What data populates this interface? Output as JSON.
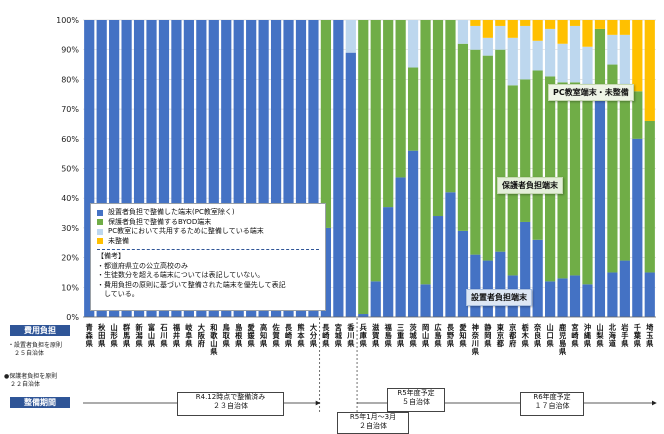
{
  "chart_data": {
    "type": "bar",
    "stacked": true,
    "yticks": [
      "0%",
      "10%",
      "20%",
      "30%",
      "40%",
      "50%",
      "60%",
      "70%",
      "80%",
      "90%",
      "100%"
    ],
    "ylim": [
      0,
      100
    ],
    "categories": [
      "青森県",
      "秋田県",
      "山形県",
      "群馬県",
      "新潟県",
      "富山県",
      "石川県",
      "福井県",
      "岐阜県",
      "大阪府",
      "和歌山県",
      "鳥取県",
      "島根県",
      "愛媛県",
      "高知県",
      "佐賀県",
      "長崎県",
      "熊本県",
      "大分県",
      "長崎県",
      "宮城県",
      "香川県",
      "兵庫県",
      "滋賀県",
      "福島県",
      "三重県",
      "茨城県",
      "岡山県",
      "広島県",
      "長野県",
      "愛知県",
      "神奈川県",
      "静岡県",
      "東京都",
      "京都府",
      "栃木県",
      "奈良県",
      "山口県",
      "鹿児島県",
      "宮崎県",
      "沖縄県",
      "山梨県",
      "北海道",
      "岩手県",
      "千葉県",
      "埼玉県"
    ],
    "series": [
      {
        "name": "設置者負担で整備した端末(PC教室除く)",
        "color": "#4472c4",
        "values": [
          100,
          100,
          100,
          100,
          100,
          100,
          100,
          100,
          100,
          100,
          100,
          100,
          100,
          100,
          100,
          100,
          100,
          100,
          100,
          30,
          100,
          89,
          1,
          12,
          37,
          47,
          56,
          11,
          34,
          42,
          29,
          21,
          19,
          22,
          14,
          32,
          26,
          12,
          13,
          14,
          11,
          73,
          15,
          19,
          60,
          15
        ]
      },
      {
        "name": "保護者負担で整備するBYOD端末",
        "color": "#70ad47",
        "values": [
          0,
          0,
          0,
          0,
          0,
          0,
          0,
          0,
          0,
          0,
          0,
          0,
          0,
          0,
          0,
          0,
          0,
          0,
          0,
          70,
          0,
          0,
          99,
          88,
          63,
          53,
          28,
          89,
          66,
          58,
          63,
          69,
          69,
          68,
          64,
          48,
          57,
          69,
          66,
          65,
          64,
          24,
          70,
          56,
          16,
          51
        ]
      },
      {
        "name": "PC教室において共用するために整備している端末",
        "color": "#bdd7ee",
        "values": [
          0,
          0,
          0,
          0,
          0,
          0,
          0,
          0,
          0,
          0,
          0,
          0,
          0,
          0,
          0,
          0,
          0,
          0,
          0,
          0,
          0,
          11,
          0,
          0,
          0,
          0,
          16,
          0,
          0,
          0,
          8,
          8,
          6,
          8,
          16,
          18,
          10,
          16,
          13,
          19,
          16,
          0,
          10,
          20,
          0,
          0
        ]
      },
      {
        "name": "未整備",
        "color": "#ffc000",
        "values": [
          0,
          0,
          0,
          0,
          0,
          0,
          0,
          0,
          0,
          0,
          0,
          0,
          0,
          0,
          0,
          0,
          0,
          0,
          0,
          0,
          0,
          0,
          0,
          0,
          0,
          0,
          0,
          0,
          0,
          0,
          0,
          2,
          6,
          2,
          6,
          2,
          7,
          3,
          8,
          2,
          9,
          3,
          5,
          5,
          24,
          34
        ]
      }
    ],
    "notes": [
      "【備考】",
      "・都道府県立の公立高校のみ",
      "・生徒数分を超える端末については表記していない。",
      "・費用負担の原則に基づいて整備された端末を優先して表記",
      "　している。"
    ],
    "annotations": [
      "PC教室端末・未整備",
      "保護者負担端末",
      "設置者負担端末"
    ]
  },
  "side": {
    "cost_label": "費用負担",
    "setter_principle": "・設置者負担を原則\n　２５自治体",
    "guardian_principle": "●保護者負担を原則\n　２２自治体",
    "period_label": "整備期間"
  },
  "periods": [
    {
      "text": "R4.12時点で整備済み\n２３自治体"
    },
    {
      "text": "R5年1月～3月\n２自治体"
    },
    {
      "text": "R5年度予定\n５自治体"
    },
    {
      "text": "R6年度予定\n１７自治体"
    }
  ],
  "colors": {
    "band": "#2f5597",
    "setter": "#4472c4",
    "guardian": "#70ad47",
    "pc_room": "#bdd7ee",
    "none": "#ffc000"
  }
}
